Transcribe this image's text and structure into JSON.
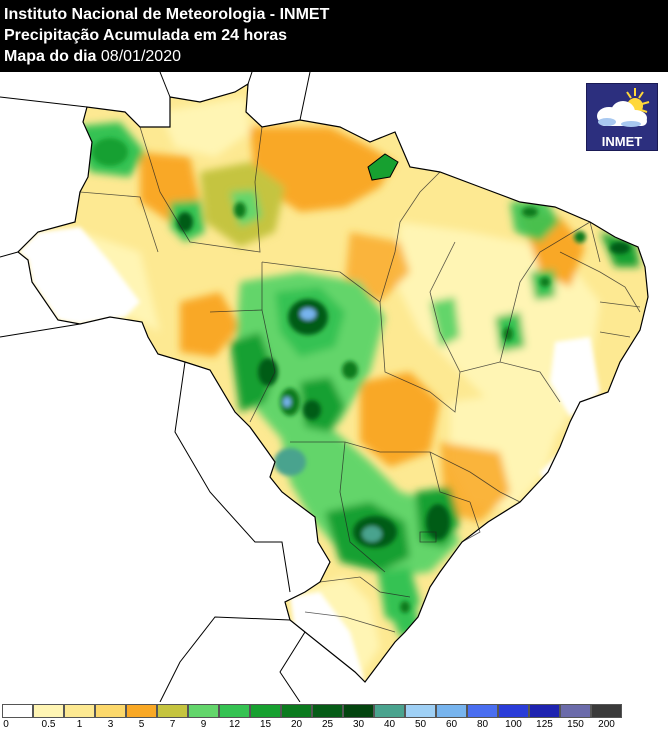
{
  "header": {
    "line1": "Instituto Nacional de Meteorologia - INMET",
    "line2": "Precipitação Acumulada em 24 horas",
    "line3_prefix": "Mapa do dia",
    "line3_date": "08/01/2020"
  },
  "logo": {
    "text": "INMET",
    "icon": "sun-cloud-icon"
  },
  "legend": {
    "labels": [
      "0",
      "0.5",
      "1",
      "3",
      "5",
      "7",
      "9",
      "12",
      "15",
      "20",
      "25",
      "30",
      "40",
      "50",
      "60",
      "80",
      "100",
      "125",
      "150",
      "200"
    ],
    "colors": [
      "#ffffff",
      "#fff5b4",
      "#fde992",
      "#fcd86b",
      "#f9a825",
      "#c5c43f",
      "#63d56b",
      "#35c252",
      "#17a030",
      "#0b7a1e",
      "#065c17",
      "#03440f",
      "#4aa38e",
      "#9fd0f5",
      "#77b4ee",
      "#4a6ef0",
      "#2a3cd8",
      "#1e23b0",
      "#6b6baa",
      "#3a3a3a"
    ]
  },
  "colors": {
    "header_bg": "#000000",
    "ocean": "#ffffff",
    "outside_area": "#ffffff",
    "no_rain": "#ffffff",
    "border_line": "#000000"
  }
}
